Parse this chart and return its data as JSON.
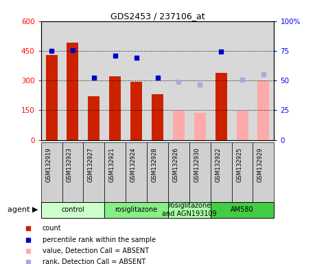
{
  "title": "GDS2453 / 237106_at",
  "samples": [
    "GSM132919",
    "GSM132923",
    "GSM132927",
    "GSM132921",
    "GSM132924",
    "GSM132928",
    "GSM132926",
    "GSM132930",
    "GSM132922",
    "GSM132925",
    "GSM132929"
  ],
  "bar_values": [
    430,
    490,
    220,
    320,
    295,
    230,
    148,
    138,
    340,
    148,
    300
  ],
  "bar_colors": [
    "#cc2200",
    "#cc2200",
    "#cc2200",
    "#cc2200",
    "#cc2200",
    "#cc2200",
    "#ffaaaa",
    "#ffaaaa",
    "#cc2200",
    "#ffaaaa",
    "#ffaaaa"
  ],
  "dot_values": [
    75,
    75.5,
    52.5,
    70.8,
    69.2,
    52.5,
    49.2,
    46.7,
    74.2,
    50.8,
    55.0
  ],
  "dot_colors": [
    "#0000cc",
    "#0000cc",
    "#0000cc",
    "#0000cc",
    "#0000cc",
    "#0000cc",
    "#aaaadd",
    "#aaaadd",
    "#0000cc",
    "#aaaadd",
    "#aaaadd"
  ],
  "ylim_left": [
    0,
    600
  ],
  "ylim_right": [
    0,
    100
  ],
  "yticks_left": [
    0,
    150,
    300,
    450,
    600
  ],
  "yticks_right": [
    0,
    25,
    50,
    75,
    100
  ],
  "agent_groups": [
    {
      "label": "control",
      "span": [
        0,
        2
      ],
      "color": "#ccffcc"
    },
    {
      "label": "rosiglitazone",
      "span": [
        3,
        5
      ],
      "color": "#88ee88"
    },
    {
      "label": "rosiglitazone\nand AGN193109",
      "span": [
        6,
        7
      ],
      "color": "#aaffaa"
    },
    {
      "label": "AM580",
      "span": [
        8,
        10
      ],
      "color": "#44cc44"
    }
  ],
  "legend_items": [
    {
      "label": "count",
      "color": "#cc2200"
    },
    {
      "label": "percentile rank within the sample",
      "color": "#0000cc"
    },
    {
      "label": "value, Detection Call = ABSENT",
      "color": "#ffaaaa"
    },
    {
      "label": "rank, Detection Call = ABSENT",
      "color": "#aaaadd"
    }
  ],
  "bar_width": 0.55,
  "col_bg_color": "#d8d8d8",
  "grid_color": "#000000",
  "title_fontsize": 9,
  "tick_fontsize": 7.5,
  "sample_fontsize": 6,
  "legend_fontsize": 7,
  "agent_fontsize": 7
}
